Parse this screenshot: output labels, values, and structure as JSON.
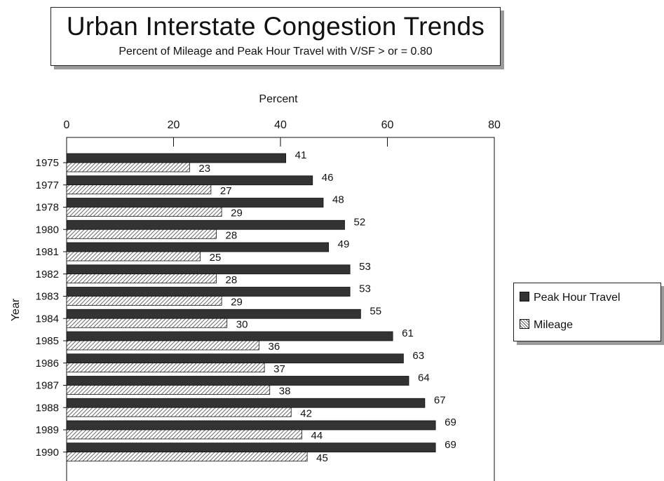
{
  "title": "Urban Interstate Congestion Trends",
  "subtitle": "Percent of Mileage and Peak Hour Travel with V/SF > or = 0.80",
  "chart_data": {
    "type": "bar",
    "orientation": "horizontal",
    "title": "Urban Interstate Congestion Trends",
    "subtitle": "Percent of Mileage and Peak Hour Travel with V/SF > or = 0.80",
    "xlabel": "Percent",
    "ylabel": "Year",
    "xlim": [
      0,
      80
    ],
    "xticks": [
      0,
      20,
      40,
      60,
      80
    ],
    "legend_position": "right",
    "grid": false,
    "categories": [
      "1975",
      "1977",
      "1978",
      "1980",
      "1981",
      "1982",
      "1983",
      "1984",
      "1985",
      "1986",
      "1987",
      "1988",
      "1989",
      "1990"
    ],
    "series": [
      {
        "name": "Peak Hour Travel",
        "color": "#333333",
        "values": [
          41,
          46,
          48,
          52,
          49,
          53,
          53,
          55,
          61,
          63,
          64,
          67,
          69,
          69
        ]
      },
      {
        "name": "Mileage",
        "color": "#555555",
        "pattern": "diagonal-hatch",
        "values": [
          23,
          27,
          29,
          28,
          25,
          28,
          29,
          30,
          36,
          37,
          38,
          42,
          44,
          45
        ]
      }
    ]
  }
}
